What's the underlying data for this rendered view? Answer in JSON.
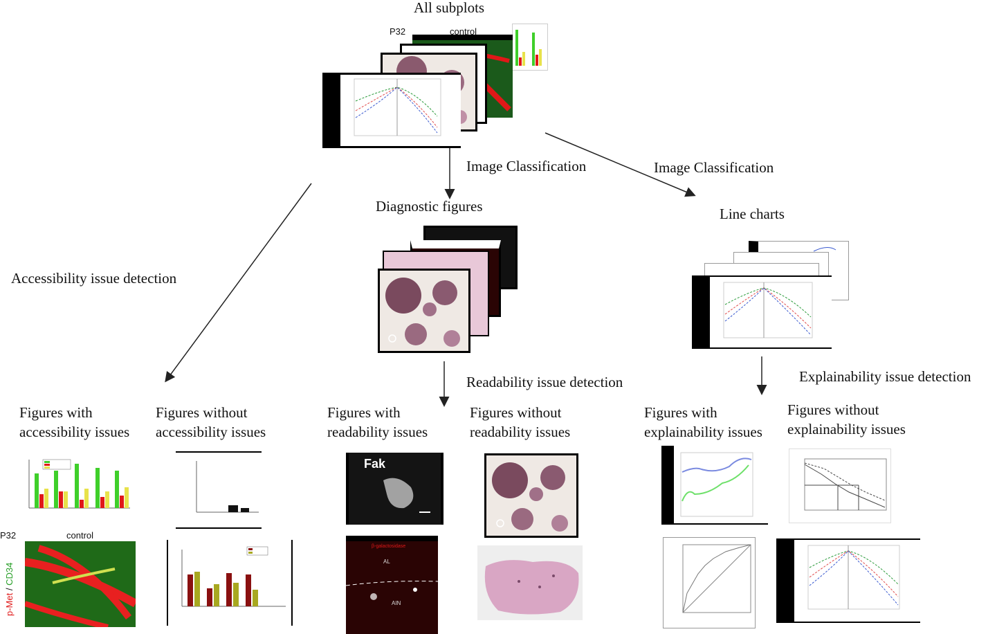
{
  "root": {
    "title": "All subplots",
    "p32_label": "P32",
    "control_label": "control"
  },
  "edges": {
    "left": "Accessibility issue detection",
    "middle": "Image Classification",
    "right": "Image Classification",
    "readability": "Readability issue detection",
    "explainability": "Explainability issue detection"
  },
  "nodes": {
    "diagnostic": "Diagnostic figures",
    "line_charts": "Line charts"
  },
  "leaves": {
    "acc_with": "Figures with\naccessibility issues",
    "acc_without": "Figures without\naccessibility issues",
    "read_with": "Figures with\nreadability issues",
    "read_without": "Figures without\nreadability issues",
    "exp_with": "Figures with\nexplainability issues",
    "exp_without": "Figures without\nexplainability issues"
  },
  "thumbs": {
    "fak_label": "Fak",
    "p32_label": "P32",
    "control_label": "control",
    "p_met_label": "p-Met",
    "cd34_label": "CD34",
    "beta_gal_label": "β-galactosidase",
    "al_label": "AL",
    "ain_label": "AIN"
  },
  "colors": {
    "green": "#3fcf2a",
    "red": "#e01818",
    "yellow": "#e8e24a",
    "olive": "#a8a820",
    "maroon": "#8a1010",
    "histology_pink": "#d9a6c4",
    "histology_bg": "#efe9e4"
  }
}
